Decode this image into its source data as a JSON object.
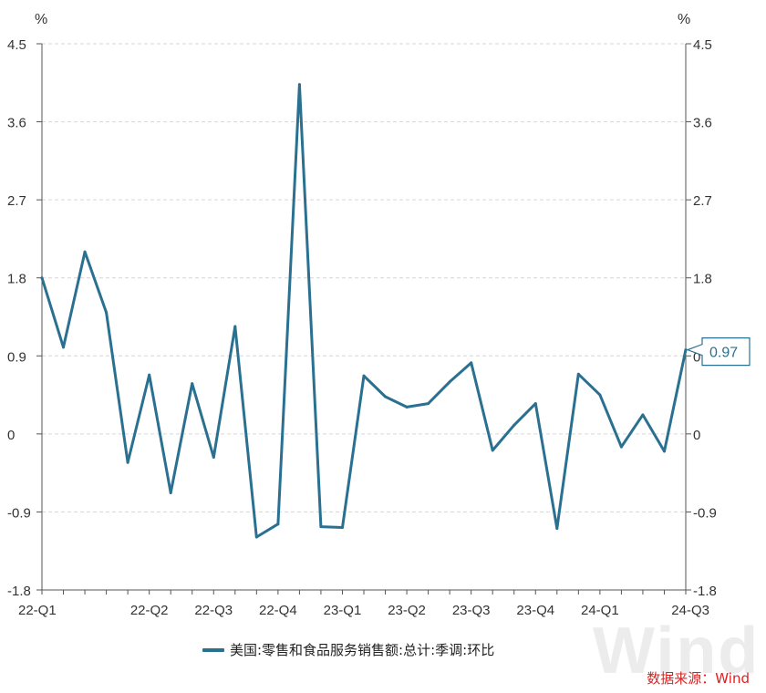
{
  "chart_data": {
    "type": "line",
    "unit_left": "%",
    "unit_right": "%",
    "ylim": [
      -1.8,
      4.5
    ],
    "yticks": [
      "4.5",
      "3.6",
      "2.7",
      "1.8",
      "0.9",
      "0",
      "-0.9",
      "-1.8"
    ],
    "ytick_values": [
      4.5,
      3.6,
      2.7,
      1.8,
      0.9,
      0,
      -0.9,
      -1.8
    ],
    "xtick_labels": [
      "22-Q1",
      "22-Q2",
      "22-Q3",
      "22-Q4",
      "23-Q1",
      "23-Q2",
      "23-Q3",
      "23-Q4",
      "24-Q1",
      "24-Q3"
    ],
    "xtick_index": [
      0,
      5,
      8,
      11,
      14,
      17,
      20,
      23,
      26,
      30
    ],
    "grid": true,
    "series": [
      {
        "name": "美国:零售和食品服务销售额:总计:季调:环比",
        "color": "#2a7090",
        "values": [
          1.8,
          1.0,
          2.1,
          1.4,
          -0.33,
          0.68,
          -0.68,
          0.58,
          -0.27,
          1.24,
          -1.19,
          -1.04,
          4.03,
          -1.07,
          -1.08,
          0.67,
          0.43,
          0.31,
          0.35,
          0.6,
          0.82,
          -0.19,
          0.1,
          0.35,
          -1.09,
          0.69,
          0.45,
          -0.15,
          0.22,
          -0.2,
          0.97
        ]
      }
    ],
    "last_value_label": "0.97",
    "source": "数据来源：Wind",
    "watermark": "Wind"
  }
}
